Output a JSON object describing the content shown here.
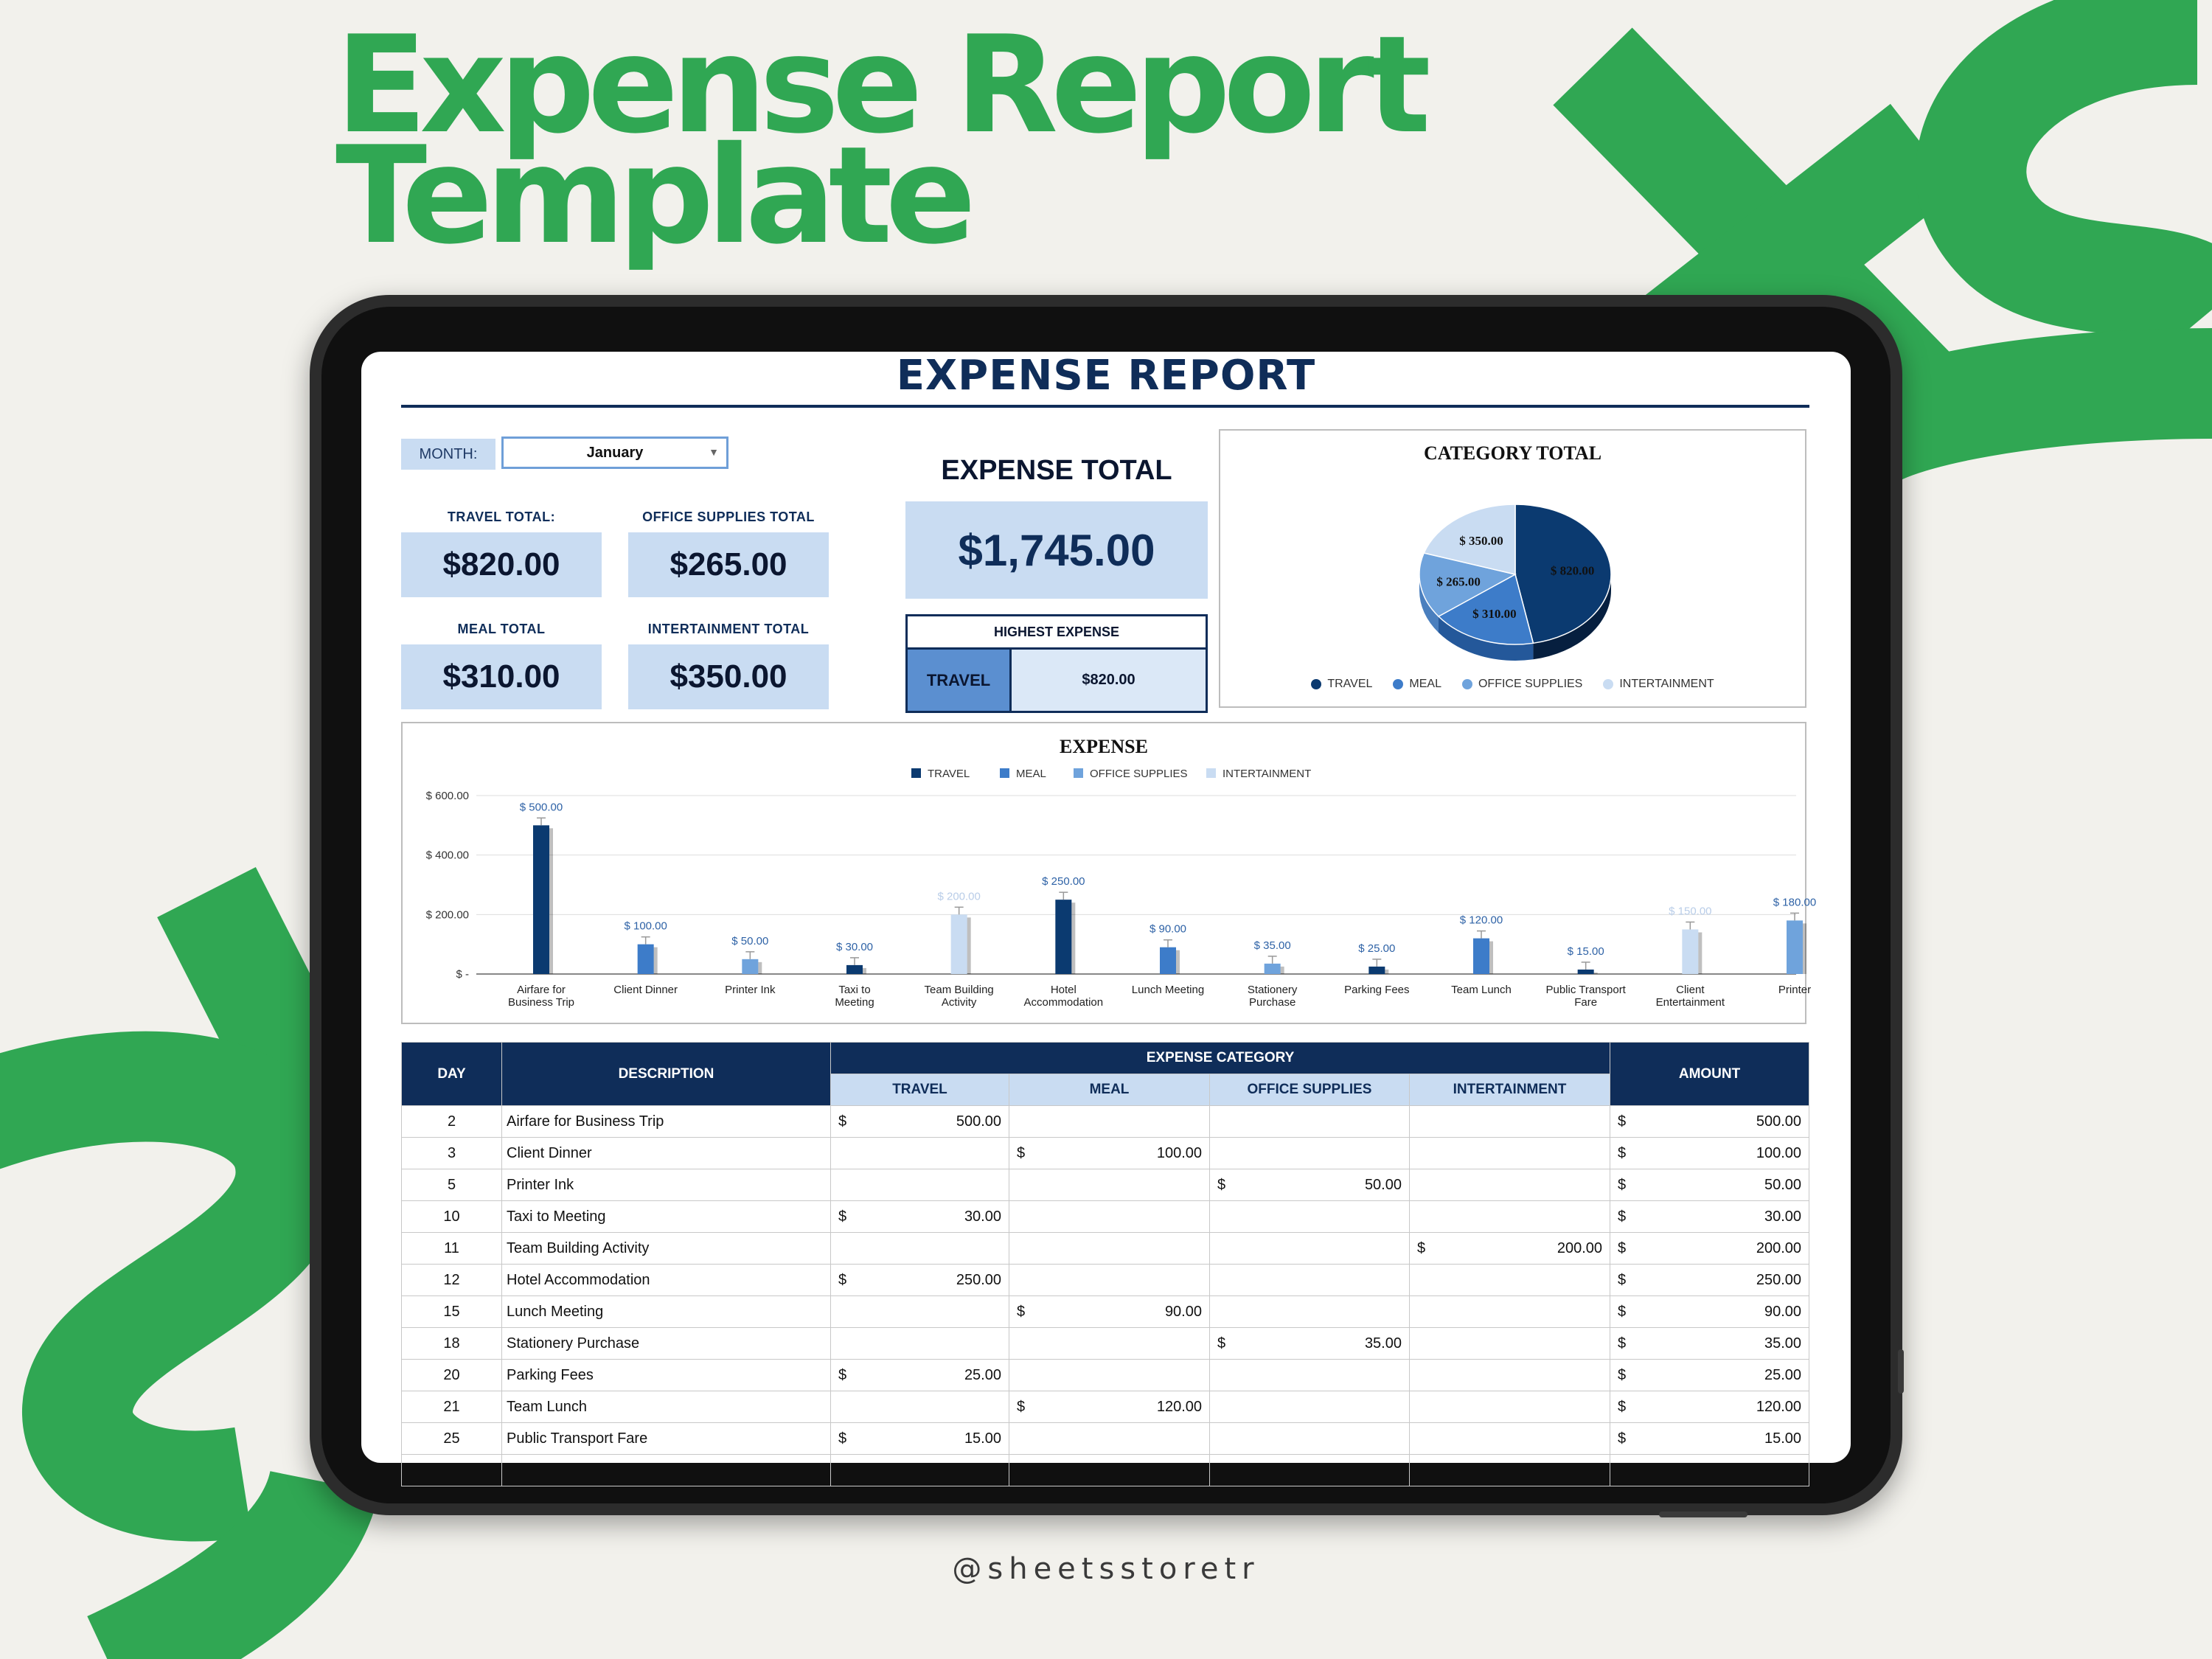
{
  "promo": {
    "title_line1": "Expense Report",
    "title_line2": "Template",
    "credit": "@sheetsstoretr",
    "accent_color": "#30a753"
  },
  "report": {
    "title": "EXPENSE REPORT",
    "month_label": "MONTH:",
    "month_value": "January",
    "kpis": {
      "travel_label": "TRAVEL TOTAL:",
      "travel_value": "$820.00",
      "office_label": "OFFICE SUPPLIES TOTAL",
      "office_value": "$265.00",
      "meal_label": "MEAL TOTAL",
      "meal_value": "$310.00",
      "entertain_label": "INTERTAINMENT TOTAL",
      "entertain_value": "$350.00"
    },
    "expense_total_label": "EXPENSE TOTAL",
    "expense_total_value": "$1,745.00",
    "highest": {
      "label": "HIGHEST EXPENSE",
      "category": "TRAVEL",
      "value": "$820.00"
    },
    "colors": {
      "navy": "#0f2d59",
      "travel": "#0b3a70",
      "meal": "#3d7cc9",
      "office": "#6fa3dc",
      "entertainment": "#c9dcf2"
    }
  },
  "chart_data": [
    {
      "type": "pie",
      "title": "CATEGORY TOTAL",
      "labels": [
        "TRAVEL",
        "MEAL",
        "OFFICE SUPPLIES",
        "INTERTAINMENT"
      ],
      "values": [
        820,
        310,
        265,
        350
      ],
      "data_labels": [
        "$ 820.00",
        "$ 310.00",
        "$ 265.00",
        "$ 350.00"
      ],
      "legend": "bottom"
    },
    {
      "type": "bar",
      "title": "EXPENSE",
      "legend": "top",
      "series_names": [
        "TRAVEL",
        "MEAL",
        "OFFICE SUPPLIES",
        "INTERTAINMENT"
      ],
      "categories": [
        "Airfare for Business Trip",
        "Client Dinner",
        "Printer Ink",
        "Taxi to Meeting",
        "Team Building Activity",
        "Hotel Accommodation",
        "Lunch Meeting",
        "Stationery Purchase",
        "Parking Fees",
        "Team Lunch",
        "Public Transport Fare",
        "Client Entertainment",
        "Printer"
      ],
      "values": [
        500,
        100,
        50,
        30,
        200,
        250,
        90,
        35,
        25,
        120,
        15,
        150,
        180
      ],
      "series_index": [
        0,
        1,
        2,
        0,
        3,
        0,
        1,
        2,
        0,
        1,
        0,
        3,
        2
      ],
      "data_labels": [
        "$ 500.00",
        "$ 100.00",
        "$ 50.00",
        "$ 30.00",
        "$ 200.00",
        "$ 250.00",
        "$ 90.00",
        "$ 35.00",
        "$ 25.00",
        "$ 120.00",
        "$ 15.00",
        "$ 150.00",
        "$ 180.00"
      ],
      "y_ticks": [
        0,
        200,
        400,
        600
      ],
      "y_tick_labels": [
        "$ -",
        "$ 200.00",
        "$ 400.00",
        "$ 600.00"
      ],
      "ylim": [
        0,
        600
      ],
      "grid": true
    }
  ],
  "table": {
    "headers": {
      "day": "DAY",
      "description": "DESCRIPTION",
      "group": "EXPENSE CATEGORY",
      "travel": "TRAVEL",
      "meal": "MEAL",
      "office": "OFFICE SUPPLIES",
      "entertainment": "INTERTAINMENT",
      "amount": "AMOUNT"
    },
    "currency": "$",
    "rows": [
      {
        "day": "2",
        "description": "Airfare for Business Trip",
        "travel": "500.00",
        "meal": "",
        "office": "",
        "entertainment": "",
        "amount": "500.00"
      },
      {
        "day": "3",
        "description": "Client Dinner",
        "travel": "",
        "meal": "100.00",
        "office": "",
        "entertainment": "",
        "amount": "100.00"
      },
      {
        "day": "5",
        "description": "Printer Ink",
        "travel": "",
        "meal": "",
        "office": "50.00",
        "entertainment": "",
        "amount": "50.00"
      },
      {
        "day": "10",
        "description": "Taxi to Meeting",
        "travel": "30.00",
        "meal": "",
        "office": "",
        "entertainment": "",
        "amount": "30.00"
      },
      {
        "day": "11",
        "description": "Team Building Activity",
        "travel": "",
        "meal": "",
        "office": "",
        "entertainment": "200.00",
        "amount": "200.00"
      },
      {
        "day": "12",
        "description": "Hotel Accommodation",
        "travel": "250.00",
        "meal": "",
        "office": "",
        "entertainment": "",
        "amount": "250.00"
      },
      {
        "day": "15",
        "description": "Lunch Meeting",
        "travel": "",
        "meal": "90.00",
        "office": "",
        "entertainment": "",
        "amount": "90.00"
      },
      {
        "day": "18",
        "description": "Stationery Purchase",
        "travel": "",
        "meal": "",
        "office": "35.00",
        "entertainment": "",
        "amount": "35.00"
      },
      {
        "day": "20",
        "description": "Parking Fees",
        "travel": "25.00",
        "meal": "",
        "office": "",
        "entertainment": "",
        "amount": "25.00"
      },
      {
        "day": "21",
        "description": "Team Lunch",
        "travel": "",
        "meal": "120.00",
        "office": "",
        "entertainment": "",
        "amount": "120.00"
      },
      {
        "day": "25",
        "description": "Public Transport Fare",
        "travel": "15.00",
        "meal": "",
        "office": "",
        "entertainment": "",
        "amount": "15.00"
      }
    ]
  }
}
